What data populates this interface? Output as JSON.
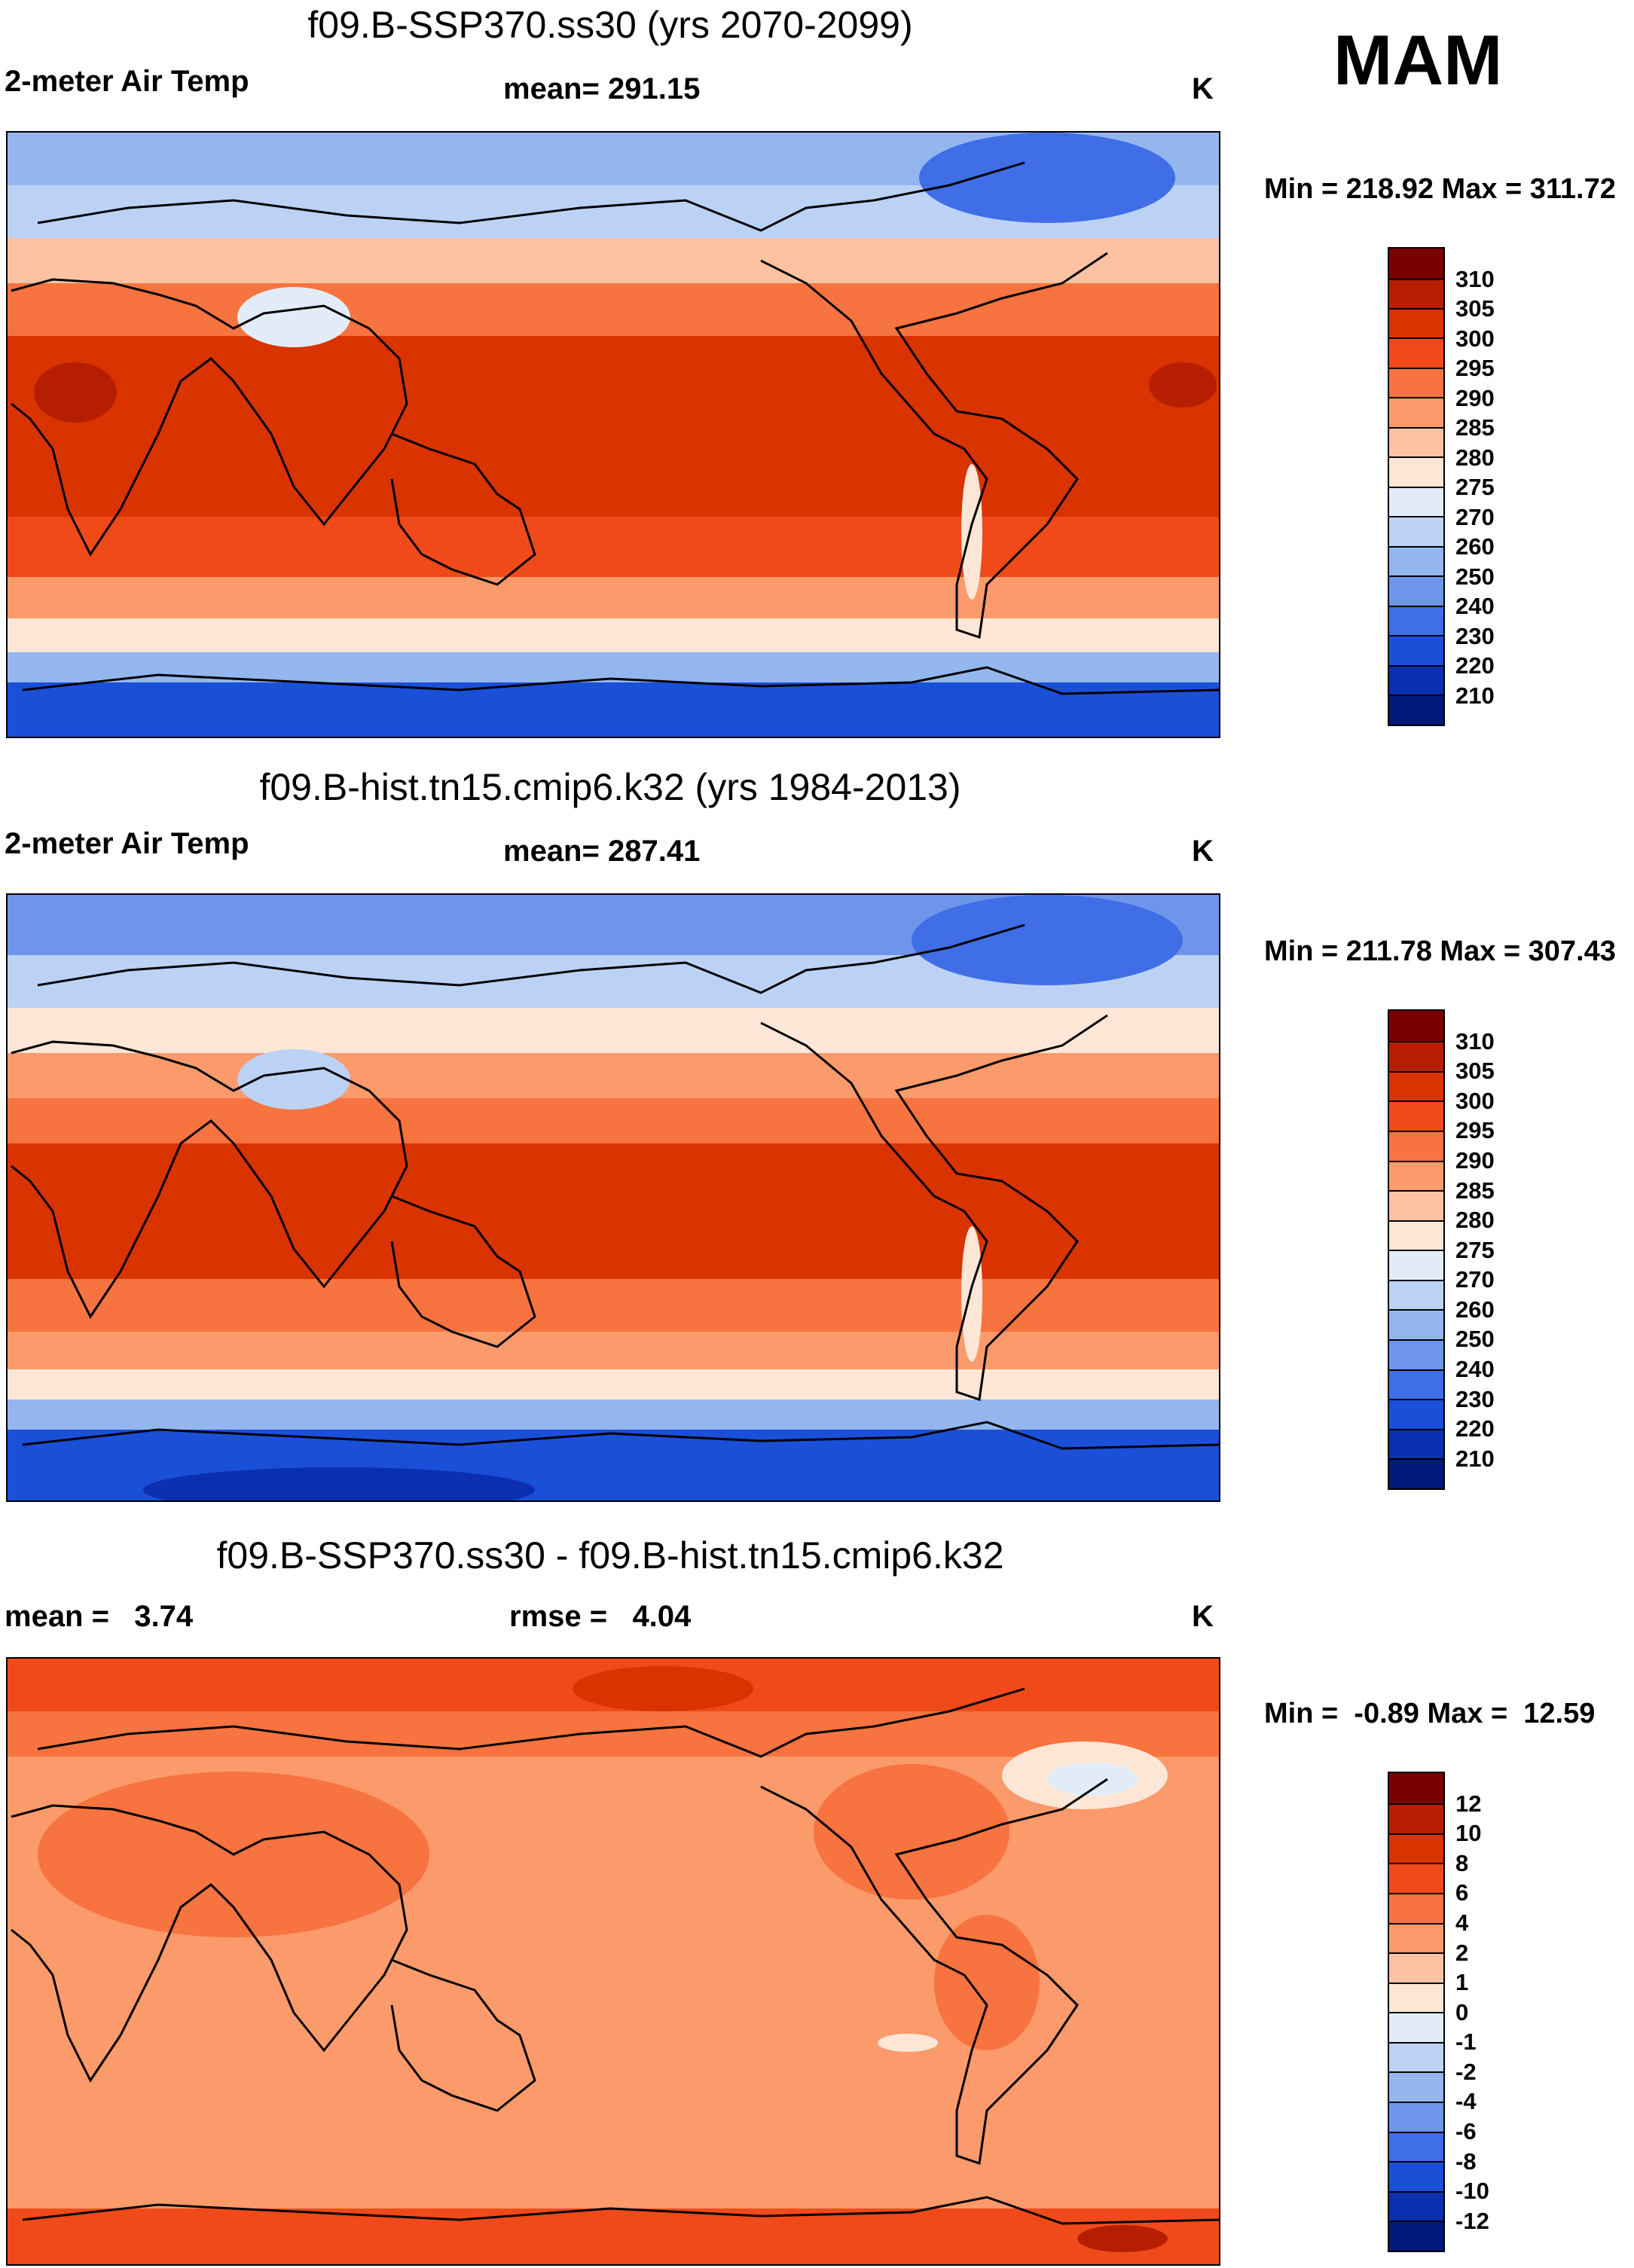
{
  "season": "MAM",
  "panels": [
    {
      "title": "f09.B-SSP370.ss30 (yrs 2070-2099)",
      "left_label": "2-meter Air Temp",
      "center_label": "mean= 291.15",
      "units": "K",
      "minmax": "Min = 218.92 Max = 311.72",
      "colorbar_levels": [
        "310",
        "305",
        "300",
        "295",
        "290",
        "285",
        "280",
        "275",
        "270",
        "260",
        "250",
        "240",
        "230",
        "220",
        "210"
      ]
    },
    {
      "title": "f09.B-hist.tn15.cmip6.k32 (yrs 1984-2013)",
      "left_label": "2-meter Air Temp",
      "center_label": "mean= 287.41",
      "units": "K",
      "minmax": "Min = 211.78 Max = 307.43",
      "colorbar_levels": [
        "310",
        "305",
        "300",
        "295",
        "290",
        "285",
        "280",
        "275",
        "270",
        "260",
        "250",
        "240",
        "230",
        "220",
        "210"
      ]
    },
    {
      "title": "f09.B-SSP370.ss30 - f09.B-hist.tn15.cmip6.k32",
      "left_label": "mean =   3.74",
      "center_label": "rmse =   4.04",
      "units": "K",
      "minmax": "Min =  -0.89 Max =  12.59",
      "colorbar_levels": [
        "12",
        "10",
        "8",
        "6",
        "4",
        "2",
        "1",
        "0",
        "-1",
        "-2",
        "-4",
        "-6",
        "-8",
        "-10",
        "-12"
      ]
    }
  ],
  "colors": {
    "abs_scale": [
      "#7a0000",
      "#b51f00",
      "#d93300",
      "#f04a1a",
      "#f7733f",
      "#fb9a6b",
      "#fcc3a3",
      "#fde6d6",
      "#e2ecf9",
      "#bcd2f5",
      "#94b6ef",
      "#6d96ea",
      "#3f6ee6",
      "#1a4fd8",
      "#0c2fb0",
      "#001a7a"
    ],
    "diff_scale": [
      "#7a0000",
      "#b51f00",
      "#d93300",
      "#f04a1a",
      "#f7733f",
      "#fb9a6b",
      "#fcc3a3",
      "#fde6d6",
      "#e2ecf9",
      "#bcd2f5",
      "#94b6ef",
      "#6d96ea",
      "#3f6ee6",
      "#1a4fd8",
      "#0c2fb0",
      "#001a7a"
    ]
  }
}
